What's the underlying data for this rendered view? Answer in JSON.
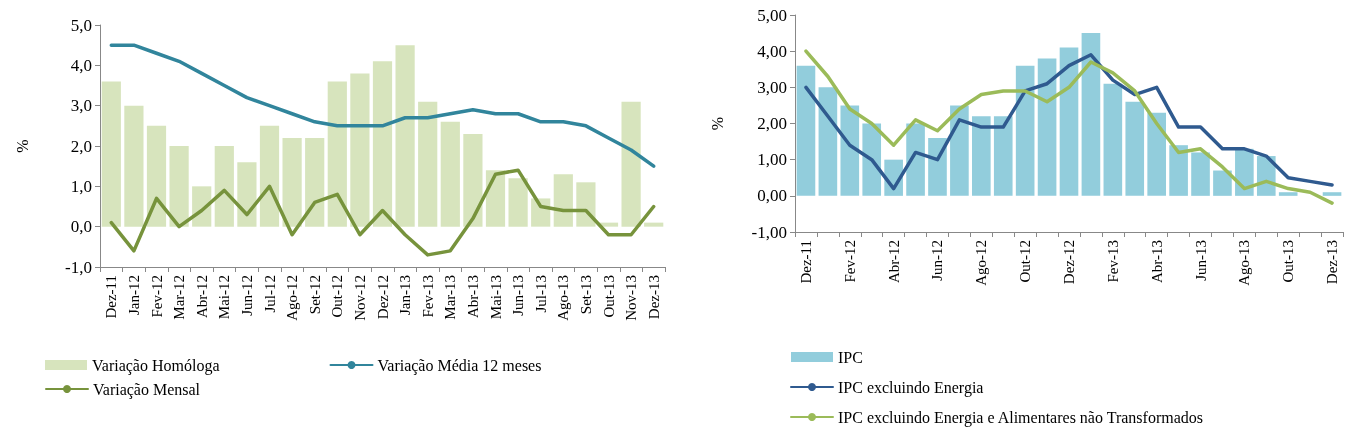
{
  "chart_data": [
    {
      "type": "bar",
      "ylabel": "%",
      "categories": [
        "Dez-11",
        "Jan-12",
        "Fev-12",
        "Mar-12",
        "Abr-12",
        "Mai-12",
        "Jun-12",
        "Jul-12",
        "Ago-12",
        "Set-12",
        "Out-12",
        "Nov-12",
        "Dez-12",
        "Jan-13",
        "Fev-13",
        "Mar-13",
        "Abr-13",
        "Mai-13",
        "Jun-13",
        "Jul-13",
        "Ago-13",
        "Set-13",
        "Out-13",
        "Nov-13",
        "Dez-13"
      ],
      "series": [
        {
          "name": "Variação Homóloga",
          "color": "#d7e4bd",
          "values": [
            3.6,
            3.0,
            2.5,
            2.0,
            1.0,
            2.0,
            1.6,
            2.5,
            2.2,
            2.2,
            3.6,
            3.8,
            4.1,
            4.5,
            3.1,
            2.6,
            2.3,
            1.4,
            1.2,
            0.7,
            1.3,
            1.1,
            0.1,
            3.1,
            0.1
          ]
        },
        {
          "name": "Variação Média 12 meses",
          "type": "line",
          "color": "#31859c",
          "values": [
            4.5,
            4.5,
            4.3,
            4.1,
            3.8,
            3.5,
            3.2,
            3.0,
            2.8,
            2.6,
            2.5,
            2.5,
            2.5,
            2.7,
            2.7,
            2.8,
            2.9,
            2.8,
            2.8,
            2.6,
            2.6,
            2.5,
            2.2,
            1.9,
            1.5
          ]
        },
        {
          "name": "Variação Mensal",
          "type": "line",
          "color": "#77933c",
          "values": [
            0.1,
            -0.6,
            0.7,
            0.0,
            0.4,
            0.9,
            0.3,
            1.0,
            -0.2,
            0.6,
            0.8,
            -0.2,
            0.4,
            -0.2,
            -0.7,
            -0.6,
            0.2,
            1.3,
            1.4,
            0.5,
            0.4,
            0.4,
            -0.2,
            -0.2,
            0.5
          ]
        }
      ],
      "ylim": [
        -1,
        5
      ],
      "yticks": [
        {
          "value": -1,
          "label": "-1,0"
        },
        {
          "value": 0,
          "label": "0,0"
        },
        {
          "value": 1,
          "label": "1,0"
        },
        {
          "value": 2,
          "label": "2,0"
        },
        {
          "value": 3,
          "label": "3,0"
        },
        {
          "value": 4,
          "label": "4,0"
        },
        {
          "value": 5,
          "label": "5,0"
        }
      ],
      "grid": false,
      "legend": "bottom",
      "marker": "none"
    },
    {
      "type": "bar",
      "ylabel": "%",
      "categories": [
        "Dez-11",
        null,
        "Fev-12",
        null,
        "Abr-12",
        null,
        "Jun-12",
        null,
        "Ago-12",
        null,
        "Out-12",
        null,
        "Dez-12",
        null,
        "Fev-13",
        null,
        "Abr-13",
        null,
        "Jun-13",
        null,
        "Ago-13",
        null,
        "Out-13",
        null,
        "Dez-13"
      ],
      "series": [
        {
          "name": "IPC",
          "color": "#92cddc",
          "values": [
            3.6,
            3.0,
            2.5,
            2.0,
            1.0,
            2.0,
            1.6,
            2.5,
            2.2,
            2.2,
            3.6,
            3.8,
            4.1,
            4.5,
            3.1,
            2.6,
            2.3,
            1.4,
            1.2,
            0.7,
            1.3,
            1.1,
            0.1,
            null,
            0.1
          ]
        },
        {
          "name": "IPC excluindo Energia",
          "type": "line",
          "color": "#2f5a8f",
          "values": [
            3.0,
            2.2,
            1.4,
            1.0,
            0.2,
            1.2,
            1.0,
            2.1,
            1.9,
            1.9,
            2.9,
            3.1,
            3.6,
            3.9,
            3.2,
            2.8,
            3.0,
            1.9,
            1.9,
            1.3,
            1.3,
            1.1,
            0.5,
            0.4,
            0.3
          ]
        },
        {
          "name": "IPC excluindo Energia e Alimentares não Transformados",
          "type": "line",
          "color": "#9bbb59",
          "values": [
            4.0,
            3.3,
            2.4,
            2.0,
            1.4,
            2.1,
            1.8,
            2.4,
            2.8,
            2.9,
            2.9,
            2.6,
            3.0,
            3.7,
            3.4,
            2.9,
            2.0,
            1.2,
            1.3,
            0.8,
            0.2,
            0.4,
            0.2,
            0.1,
            -0.2
          ]
        }
      ],
      "ylim": [
        -1,
        5
      ],
      "yticks": [
        {
          "value": -1,
          "label": "-1,00"
        },
        {
          "value": 0,
          "label": "0,00"
        },
        {
          "value": 1,
          "label": "1,00"
        },
        {
          "value": 2,
          "label": "2,00"
        },
        {
          "value": 3,
          "label": "3,00"
        },
        {
          "value": 4,
          "label": "4,00"
        },
        {
          "value": 5,
          "label": "5,00"
        }
      ],
      "grid": false,
      "legend": "bottom left",
      "marker": "none"
    }
  ]
}
